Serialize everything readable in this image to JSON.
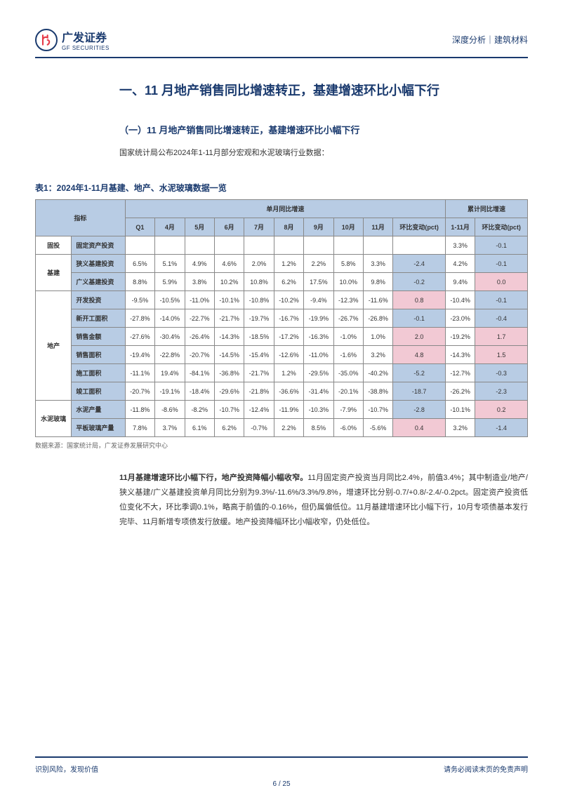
{
  "header": {
    "logo_cn": "广发证券",
    "logo_en": "GF SECURITIES",
    "right_text": "深度分析｜建筑材料"
  },
  "section_title": "一、11 月地产销售同比增速转正，基建增速环比小幅下行",
  "subsection_title": "（一）11 月地产销售同比增速转正，基建增速环比小幅下行",
  "intro_text": "国家统计局公布2024年1-11月部分宏观和水泥玻璃行业数据：",
  "table_caption": "表1：2024年1-11月基建、地产、水泥玻璃数据一览",
  "table_source": "数据来源：国家统计局，广发证券发展研究中心",
  "table": {
    "header_group1": "单月同比增速",
    "header_group2": "累计同比增速",
    "columns": [
      "指标",
      "Q1",
      "4月",
      "5月",
      "6月",
      "7月",
      "8月",
      "9月",
      "10月",
      "11月",
      "环比变动(pct)",
      "1-11月",
      "环比变动(pct)"
    ],
    "groups": [
      {
        "name": "固投",
        "rows": [
          {
            "label": "固定资产投资",
            "data": [
              "",
              "",
              "",
              "",
              "",
              "",
              "",
              "",
              "",
              "",
              "3.3%",
              "-0.1"
            ],
            "colors": [
              "",
              "",
              "",
              "",
              "",
              "",
              "",
              "",
              "",
              "",
              "",
              "blue"
            ]
          }
        ]
      },
      {
        "name": "基建",
        "rows": [
          {
            "label": "狭义基建投资",
            "data": [
              "6.5%",
              "5.1%",
              "4.9%",
              "4.6%",
              "2.0%",
              "1.2%",
              "2.2%",
              "5.8%",
              "3.3%",
              "-2.4",
              "4.2%",
              "-0.1"
            ],
            "colors": [
              "",
              "",
              "",
              "",
              "",
              "",
              "",
              "",
              "",
              "blue",
              "",
              "blue"
            ]
          },
          {
            "label": "广义基建投资",
            "data": [
              "8.8%",
              "5.9%",
              "3.8%",
              "10.2%",
              "10.8%",
              "6.2%",
              "17.5%",
              "10.0%",
              "9.8%",
              "-0.2",
              "9.4%",
              "0.0"
            ],
            "colors": [
              "",
              "",
              "",
              "",
              "",
              "",
              "",
              "",
              "",
              "blue",
              "",
              "pink"
            ]
          }
        ]
      },
      {
        "name": "地产",
        "rows": [
          {
            "label": "开发投资",
            "data": [
              "-9.5%",
              "-10.5%",
              "-11.0%",
              "-10.1%",
              "-10.8%",
              "-10.2%",
              "-9.4%",
              "-12.3%",
              "-11.6%",
              "0.8",
              "-10.4%",
              "-0.1"
            ],
            "colors": [
              "",
              "",
              "",
              "",
              "",
              "",
              "",
              "",
              "",
              "pink",
              "",
              "blue"
            ]
          },
          {
            "label": "新开工面积",
            "data": [
              "-27.8%",
              "-14.0%",
              "-22.7%",
              "-21.7%",
              "-19.7%",
              "-16.7%",
              "-19.9%",
              "-26.7%",
              "-26.8%",
              "-0.1",
              "-23.0%",
              "-0.4"
            ],
            "colors": [
              "",
              "",
              "",
              "",
              "",
              "",
              "",
              "",
              "",
              "blue",
              "",
              "blue"
            ]
          },
          {
            "label": "销售金额",
            "data": [
              "-27.6%",
              "-30.4%",
              "-26.4%",
              "-14.3%",
              "-18.5%",
              "-17.2%",
              "-16.3%",
              "-1.0%",
              "1.0%",
              "2.0",
              "-19.2%",
              "1.7"
            ],
            "colors": [
              "",
              "",
              "",
              "",
              "",
              "",
              "",
              "",
              "",
              "pink",
              "",
              "pink"
            ]
          },
          {
            "label": "销售面积",
            "data": [
              "-19.4%",
              "-22.8%",
              "-20.7%",
              "-14.5%",
              "-15.4%",
              "-12.6%",
              "-11.0%",
              "-1.6%",
              "3.2%",
              "4.8",
              "-14.3%",
              "1.5"
            ],
            "colors": [
              "",
              "",
              "",
              "",
              "",
              "",
              "",
              "",
              "",
              "pink",
              "",
              "pink"
            ]
          },
          {
            "label": "施工面积",
            "data": [
              "-11.1%",
              "19.4%",
              "-84.1%",
              "-36.8%",
              "-21.7%",
              "1.2%",
              "-29.5%",
              "-35.0%",
              "-40.2%",
              "-5.2",
              "-12.7%",
              "-0.3"
            ],
            "colors": [
              "",
              "",
              "",
              "",
              "",
              "",
              "",
              "",
              "",
              "blue",
              "",
              "blue"
            ]
          },
          {
            "label": "竣工面积",
            "data": [
              "-20.7%",
              "-19.1%",
              "-18.4%",
              "-29.6%",
              "-21.8%",
              "-36.6%",
              "-31.4%",
              "-20.1%",
              "-38.8%",
              "-18.7",
              "-26.2%",
              "-2.3"
            ],
            "colors": [
              "",
              "",
              "",
              "",
              "",
              "",
              "",
              "",
              "",
              "blue",
              "",
              "blue"
            ]
          }
        ]
      },
      {
        "name": "水泥玻璃",
        "rows": [
          {
            "label": "水泥产量",
            "data": [
              "-11.8%",
              "-8.6%",
              "-8.2%",
              "-10.7%",
              "-12.4%",
              "-11.9%",
              "-10.3%",
              "-7.9%",
              "-10.7%",
              "-2.8",
              "-10.1%",
              "0.2"
            ],
            "colors": [
              "",
              "",
              "",
              "",
              "",
              "",
              "",
              "",
              "",
              "blue",
              "",
              "pink"
            ]
          },
          {
            "label": "平板玻璃产量",
            "data": [
              "7.8%",
              "3.7%",
              "6.1%",
              "6.2%",
              "-0.7%",
              "2.2%",
              "8.5%",
              "-6.0%",
              "-5.6%",
              "0.4",
              "3.2%",
              "-1.4"
            ],
            "colors": [
              "",
              "",
              "",
              "",
              "",
              "",
              "",
              "",
              "",
              "pink",
              "",
              "blue"
            ]
          }
        ]
      }
    ]
  },
  "paragraph": {
    "bold": "11月基建增速环比小幅下行，地产投资降幅小幅收窄。",
    "text": "11月固定资产投资当月同比2.4%，前值3.4%；其中制造业/地产/狭义基建/广义基建投资单月同比分别为9.3%/-11.6%/3.3%/9.8%，增速环比分别-0.7/+0.8/-2.4/-0.2pct。固定资产投资低位变化不大，环比季调0.1%，略高于前值的-0.16%，但仍属偏低位。11月基建增速环比小幅下行，10月专项债基本发行完毕、11月新增专项债发行放缓。地产投资降幅环比小幅收窄，仍处低位。"
  },
  "footer": {
    "left": "识别风险，发现价值",
    "right": "请务必阅读末页的免责声明",
    "page": "6 / 25"
  }
}
